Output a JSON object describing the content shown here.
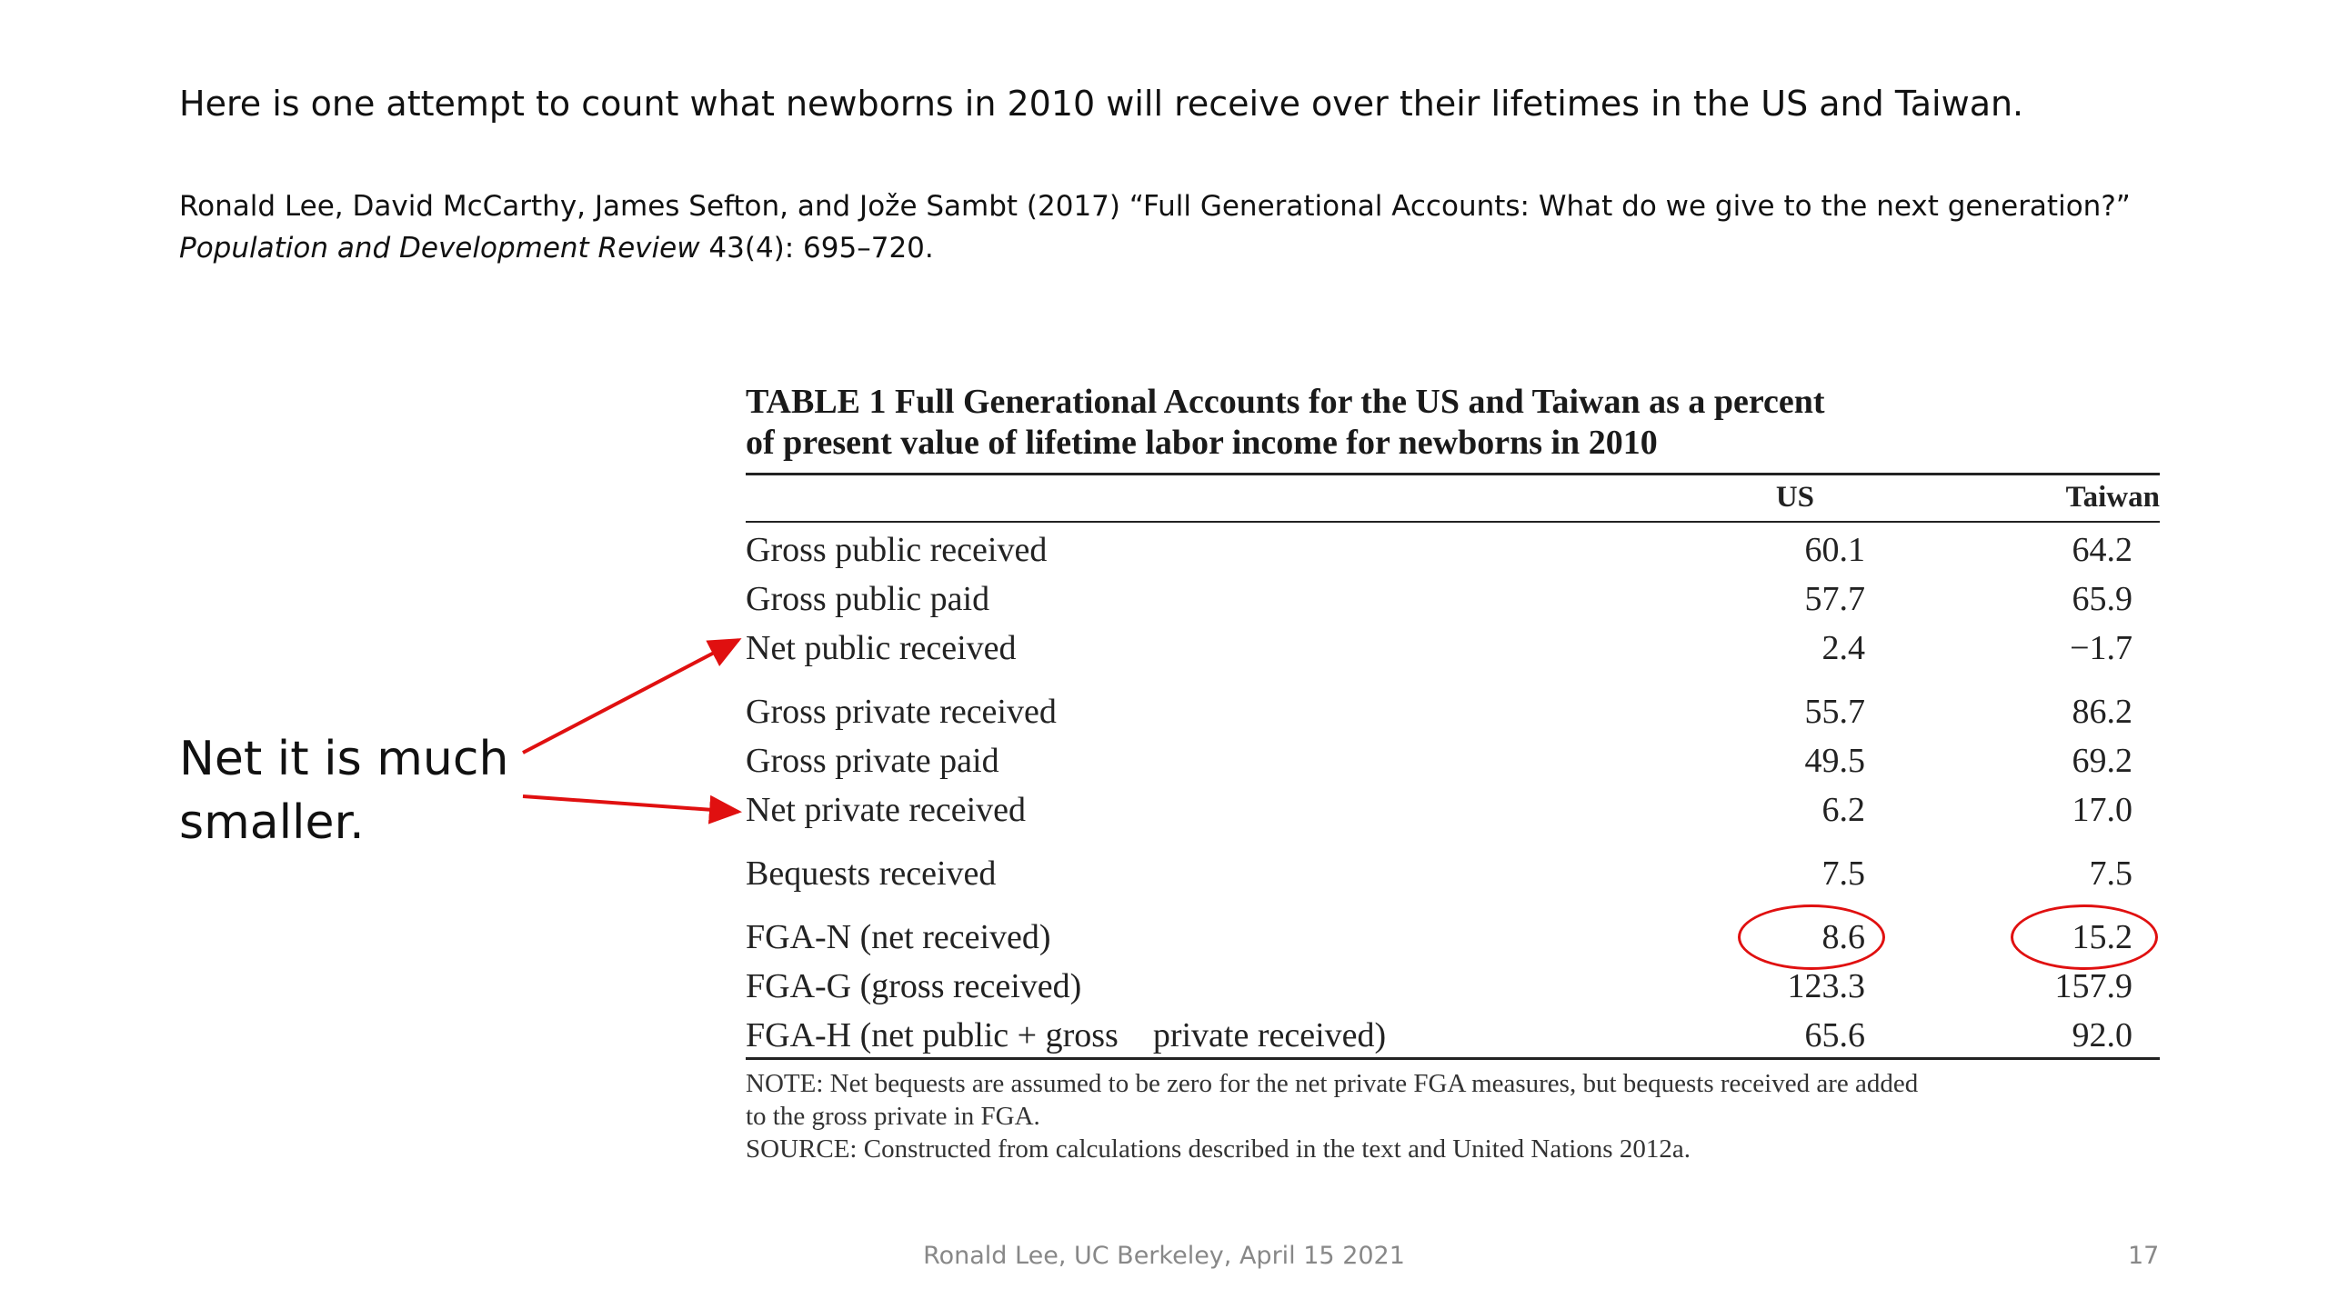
{
  "slide": {
    "heading": "Here is one attempt to count what newborns in 2010 will receive over their lifetimes in the US and Taiwan.",
    "citation": {
      "line1": "Ronald Lee, David McCarthy, James Sefton, and Jože Sambt (2017) “Full Generational Accounts: What do we give to the next generation?”",
      "journal": "Population and Development Review",
      "journal_rest": " 43(4): 695–720."
    },
    "annotation": {
      "line1": "Net it is much",
      "line2": "smaller."
    },
    "footer": "Ronald Lee, UC Berkeley, April 15 2021",
    "page_number": "17",
    "accent_color": "#e01010"
  },
  "table": {
    "caption_line1": "TABLE 1  Full Generational Accounts for the US and Taiwan as a percent",
    "caption_line2": "of present value of lifetime labor income for newborns in 2010",
    "col_us": "US",
    "col_taiwan": "Taiwan",
    "rows": [
      {
        "label": "Gross public received",
        "us": "60.1",
        "taiwan": "64.2"
      },
      {
        "label": "Gross public paid",
        "us": "57.7",
        "taiwan": "65.9"
      },
      {
        "label": "Net public received",
        "us": "2.4",
        "taiwan": "−1.7"
      },
      {
        "label": "Gross private received",
        "us": "55.7",
        "taiwan": "86.2"
      },
      {
        "label": "Gross private paid",
        "us": "49.5",
        "taiwan": "69.2"
      },
      {
        "label": "Net private received",
        "us": "6.2",
        "taiwan": "17.0"
      },
      {
        "label": "Bequests received",
        "us": "7.5",
        "taiwan": "7.5"
      },
      {
        "label": "FGA-N (net received)",
        "us": "8.6",
        "taiwan": "15.2"
      },
      {
        "label": "FGA-G (gross received)",
        "us": "123.3",
        "taiwan": "157.9"
      },
      {
        "label": "FGA-H (net public + gross    private received)",
        "us": "65.6",
        "taiwan": "92.0"
      }
    ],
    "note_line1": "NOTE: Net bequests are assumed to be zero for the net private FGA measures, but bequests received are added",
    "note_line2": "to the gross private in FGA.",
    "source": "SOURCE: Constructed from calculations described in the text and United Nations 2012a."
  }
}
